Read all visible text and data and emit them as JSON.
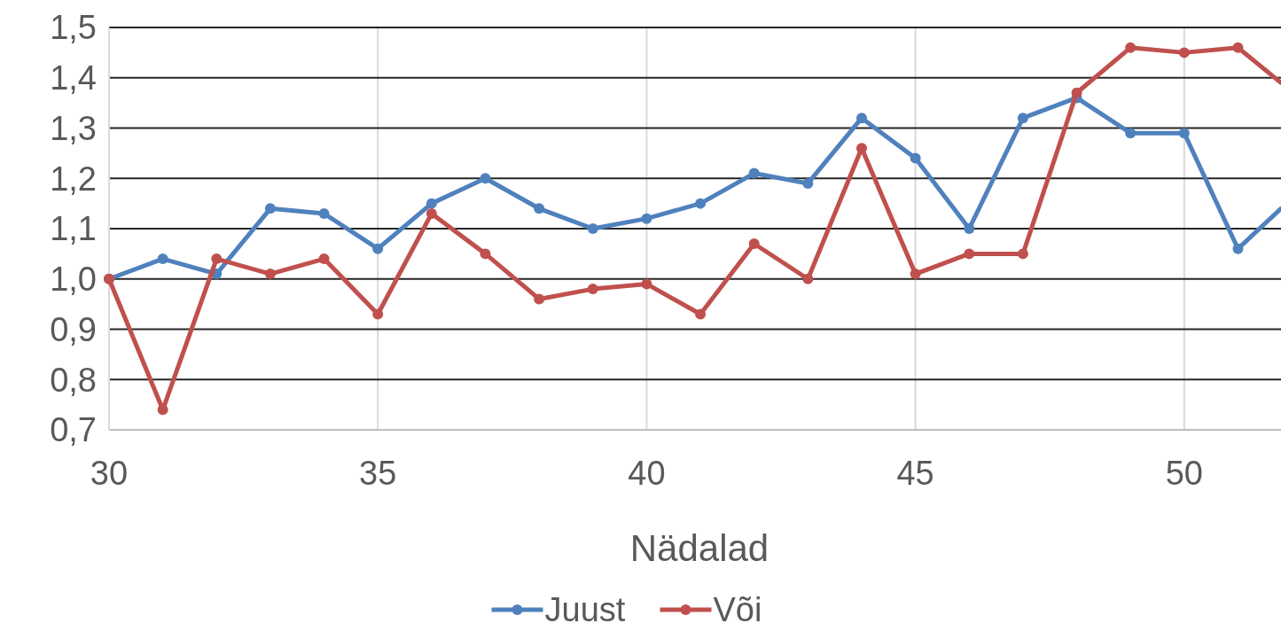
{
  "chart_data": {
    "type": "line",
    "xlabel": "Nädalad",
    "x": [
      30,
      31,
      32,
      33,
      34,
      35,
      36,
      37,
      38,
      39,
      40,
      41,
      42,
      43,
      44,
      45,
      46,
      47,
      48,
      49,
      50,
      51,
      51.8
    ],
    "series": [
      {
        "name": "Juust",
        "color": "#4f81bd",
        "values": [
          1.0,
          1.04,
          1.01,
          1.14,
          1.13,
          1.06,
          1.15,
          1.2,
          1.14,
          1.1,
          1.12,
          1.15,
          1.21,
          1.19,
          1.32,
          1.24,
          1.1,
          1.32,
          1.36,
          1.29,
          1.29,
          1.06,
          1.14
        ]
      },
      {
        "name": "Või",
        "color": "#c0504d",
        "values": [
          1.0,
          0.74,
          1.04,
          1.01,
          1.04,
          0.93,
          1.13,
          1.05,
          0.96,
          0.98,
          0.99,
          0.93,
          1.07,
          1.0,
          1.26,
          1.01,
          1.05,
          1.05,
          1.37,
          1.46,
          1.45,
          1.46,
          1.39
        ]
      }
    ],
    "xlim": [
      30,
      51.8
    ],
    "xticks": [
      30,
      35,
      40,
      45,
      50
    ],
    "ylim": [
      0.7,
      1.5
    ],
    "yticks": [
      {
        "value": 0.7,
        "label": "0,7"
      },
      {
        "value": 0.8,
        "label": "0,8"
      },
      {
        "value": 0.9,
        "label": "0,9"
      },
      {
        "value": 1.0,
        "label": "1,0"
      },
      {
        "value": 1.1,
        "label": "1,1"
      },
      {
        "value": 1.2,
        "label": "1,2"
      },
      {
        "value": 1.3,
        "label": "1,3"
      },
      {
        "value": 1.4,
        "label": "1,4"
      },
      {
        "value": 1.5,
        "label": "1,5"
      }
    ],
    "grid": true,
    "legend": "bottom",
    "marker": "circle",
    "line_style": "solid"
  }
}
